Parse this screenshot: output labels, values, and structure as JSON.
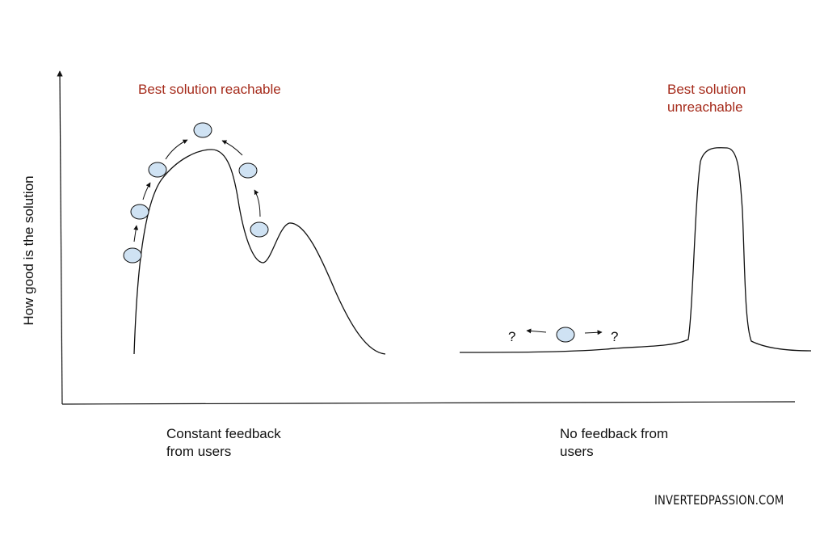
{
  "axes": {
    "ylabel": "How good is the solution"
  },
  "left_panel": {
    "title": "Best solution reachable",
    "caption_lines": [
      "Constant feedback",
      "from users"
    ]
  },
  "right_panel": {
    "title_lines": [
      "Best solution",
      "unreachable"
    ],
    "caption_lines": [
      "No feedback from",
      "users"
    ],
    "question_left": "?",
    "question_right": "?"
  },
  "brand": {
    "text": "INVERTEDPASSION.COM"
  },
  "colors": {
    "accent_text": "#a52a1a",
    "ball_fill": "#cfe2f3",
    "line": "#111111"
  }
}
